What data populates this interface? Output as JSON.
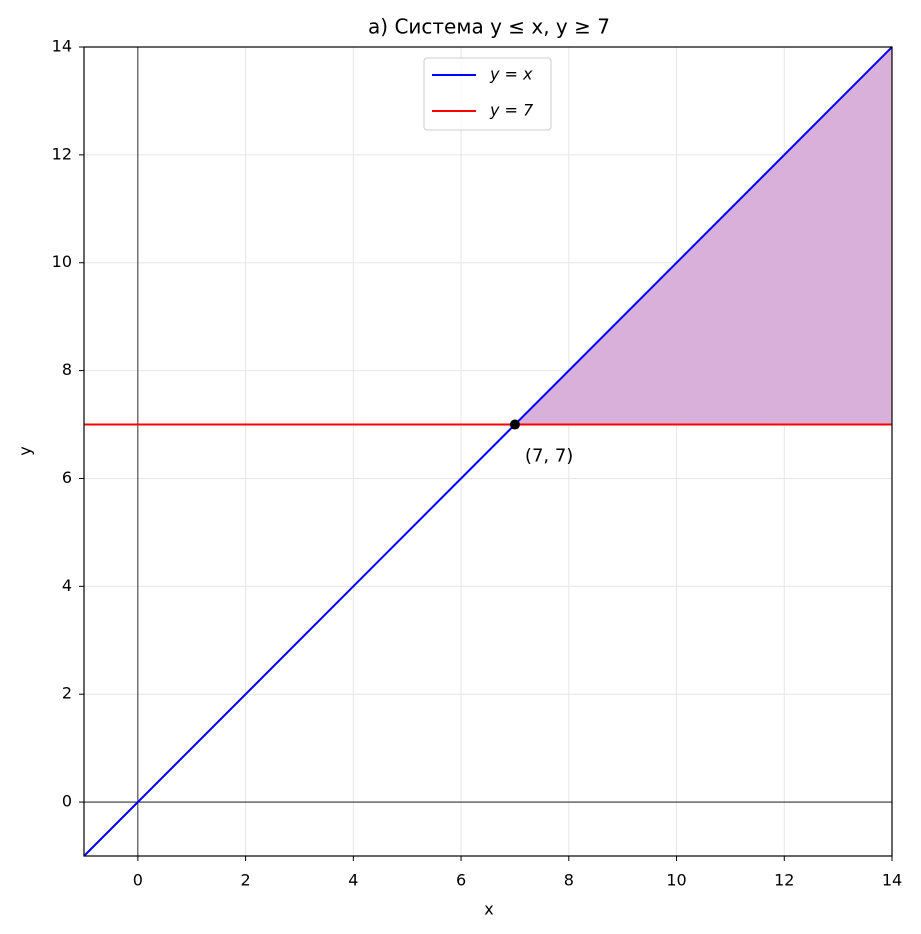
{
  "chart_data": {
    "type": "line",
    "title": "а) Система y ≤ x, y ≥ 7",
    "x_label": "x",
    "y_label": "y",
    "xlim": [
      -1,
      14
    ],
    "ylim": [
      -1,
      14
    ],
    "xticks": [
      0,
      2,
      4,
      6,
      8,
      10,
      12,
      14
    ],
    "yticks": [
      0,
      2,
      4,
      6,
      8,
      10,
      12,
      14
    ],
    "grid": true,
    "reference_lines": {
      "x": 0,
      "y": 0
    },
    "series": [
      {
        "name": "y = x",
        "color": "#0000ff",
        "x": [
          -1,
          14
        ],
        "values": [
          -1,
          14
        ]
      },
      {
        "name": "y = 7",
        "color": "#ff0000",
        "x": [
          -1,
          14
        ],
        "values": [
          7,
          7
        ]
      }
    ],
    "fill": {
      "color": "#d8b0da",
      "x": [
        7,
        14,
        14
      ],
      "y": [
        7,
        14,
        7
      ]
    },
    "points": [
      {
        "x": 7,
        "y": 7,
        "label": "(7, 7)",
        "color": "#000000"
      }
    ],
    "legend": "upper center"
  }
}
